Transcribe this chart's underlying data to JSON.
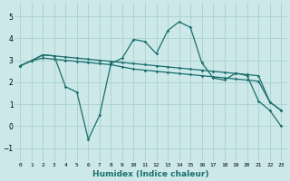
{
  "title": "",
  "xlabel": "Humidex (Indice chaleur)",
  "ylabel": "",
  "bg_color": "#cce8e8",
  "grid_color": "#aad0d0",
  "line_color": "#1a6e6e",
  "xlim": [
    -0.5,
    23.5
  ],
  "ylim": [
    -1.6,
    5.6
  ],
  "yticks": [
    -1,
    0,
    1,
    2,
    3,
    4,
    5
  ],
  "xticks": [
    0,
    1,
    2,
    3,
    4,
    5,
    6,
    7,
    8,
    9,
    10,
    11,
    12,
    13,
    14,
    15,
    16,
    17,
    18,
    19,
    20,
    21,
    22,
    23
  ],
  "line1_x": [
    0,
    1,
    2,
    3,
    4,
    5,
    6,
    7,
    8,
    9,
    10,
    11,
    12,
    13,
    14,
    15,
    16,
    17,
    18,
    19,
    20,
    21,
    22,
    23
  ],
  "line1_y": [
    2.75,
    2.98,
    3.25,
    3.2,
    3.15,
    3.1,
    3.05,
    3.0,
    2.95,
    2.9,
    2.85,
    2.8,
    2.75,
    2.7,
    2.65,
    2.6,
    2.55,
    2.5,
    2.45,
    2.4,
    2.35,
    2.3,
    1.1,
    0.72
  ],
  "line2_x": [
    0,
    1,
    2,
    3,
    4,
    5,
    6,
    7,
    8,
    9,
    10,
    11,
    12,
    13,
    14,
    15,
    16,
    17,
    18,
    19,
    20,
    21,
    22,
    23
  ],
  "line2_y": [
    2.75,
    2.98,
    3.25,
    3.2,
    1.8,
    1.55,
    -0.6,
    0.5,
    2.85,
    3.1,
    3.95,
    3.85,
    3.3,
    4.35,
    4.75,
    4.5,
    2.9,
    2.2,
    2.1,
    2.42,
    2.3,
    1.15,
    0.72,
    0.0
  ],
  "line3_x": [
    0,
    1,
    2,
    3,
    4,
    5,
    6,
    7,
    8,
    9,
    10,
    11,
    12,
    13,
    14,
    15,
    16,
    17,
    18,
    19,
    20,
    21,
    22,
    23
  ],
  "line3_y": [
    2.75,
    2.98,
    3.1,
    3.05,
    3.0,
    2.95,
    2.9,
    2.85,
    2.8,
    2.7,
    2.6,
    2.55,
    2.5,
    2.45,
    2.4,
    2.35,
    2.3,
    2.25,
    2.2,
    2.15,
    2.1,
    2.05,
    1.1,
    0.72
  ],
  "marker": "D",
  "marker_size": 1.8,
  "line_width": 0.9,
  "tick_fontsize": 5.5,
  "xlabel_fontsize": 6.5
}
